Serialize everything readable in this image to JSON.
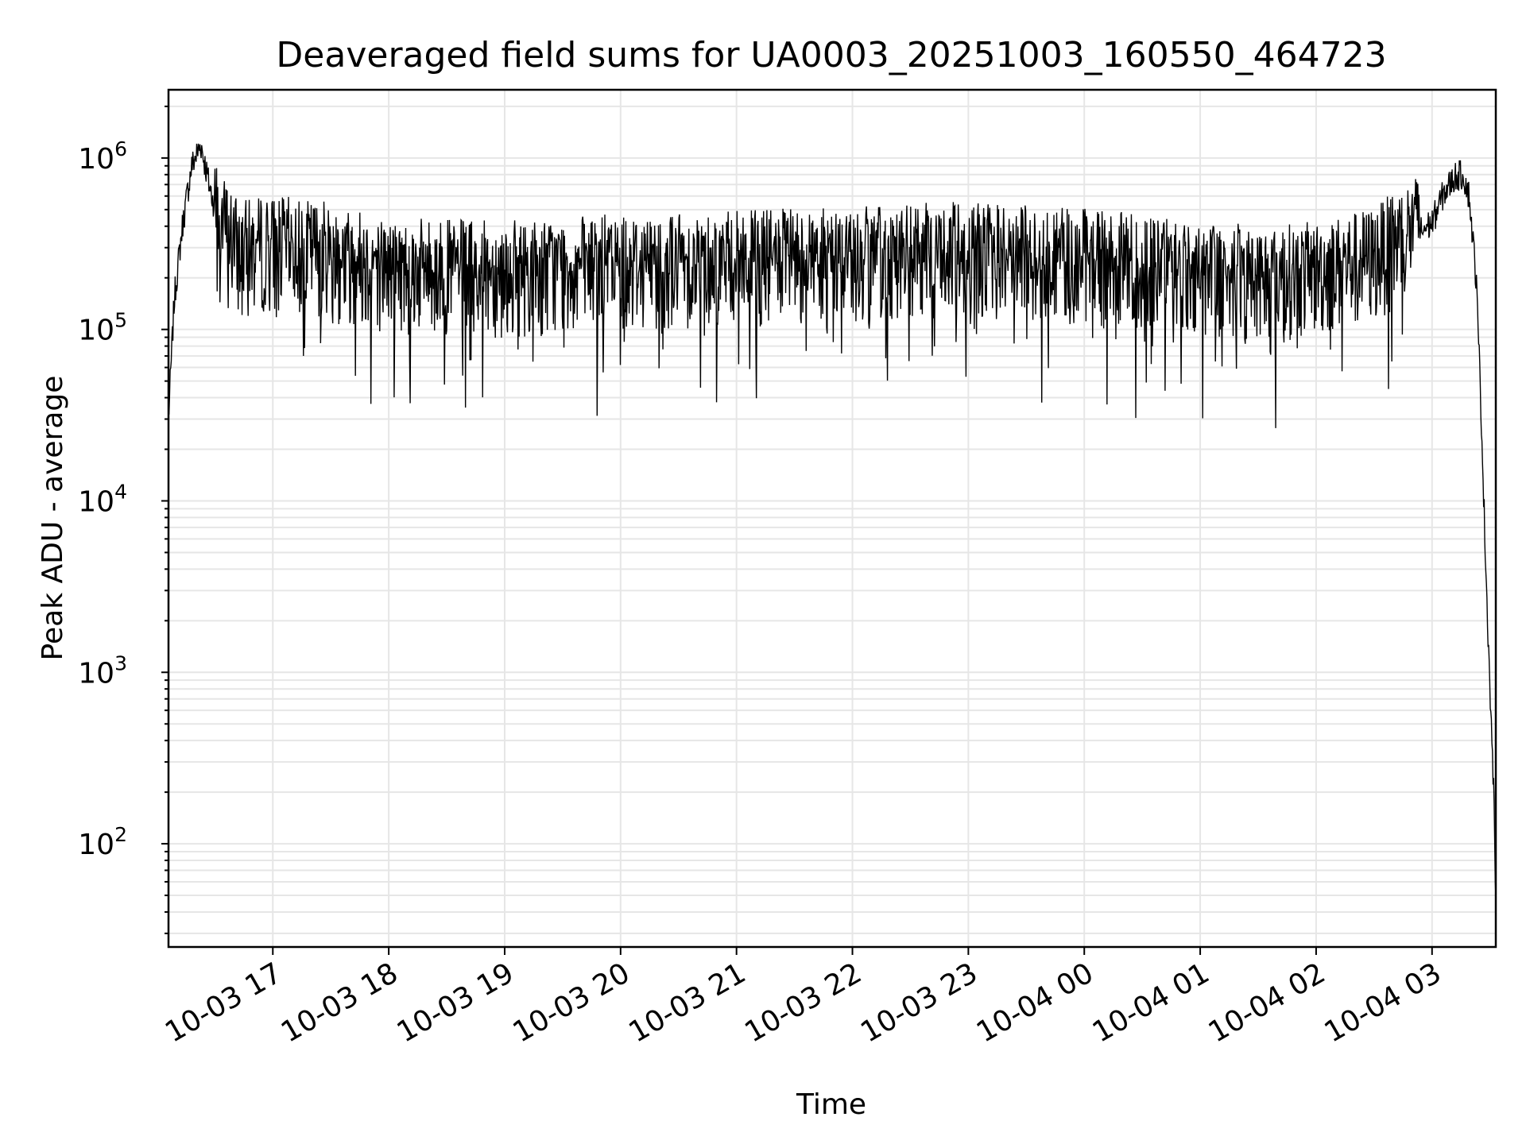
{
  "chart_data": {
    "type": "line",
    "title": "Deaveraged field sums for UA0003_20251003_160550_464723",
    "xlabel": "Time",
    "ylabel": "Peak ADU - average",
    "yscale": "log",
    "ylim": [
      25,
      2500000
    ],
    "xlim_hours": [
      16.1,
      27.55
    ],
    "grid": true,
    "grid_minor": true,
    "y_ticks": [
      {
        "value": 100,
        "base": "10",
        "exp": "2"
      },
      {
        "value": 1000,
        "base": "10",
        "exp": "3"
      },
      {
        "value": 10000,
        "base": "10",
        "exp": "4"
      },
      {
        "value": 100000,
        "base": "10",
        "exp": "5"
      },
      {
        "value": 1000000,
        "base": "10",
        "exp": "6"
      }
    ],
    "x_ticks": [
      {
        "hours": 17,
        "label": "10-03 17"
      },
      {
        "hours": 18,
        "label": "10-03 18"
      },
      {
        "hours": 19,
        "label": "10-03 19"
      },
      {
        "hours": 20,
        "label": "10-03 20"
      },
      {
        "hours": 21,
        "label": "10-03 21"
      },
      {
        "hours": 22,
        "label": "10-03 22"
      },
      {
        "hours": 23,
        "label": "10-03 23"
      },
      {
        "hours": 24,
        "label": "10-04 00"
      },
      {
        "hours": 25,
        "label": "10-04 01"
      },
      {
        "hours": 26,
        "label": "10-04 02"
      },
      {
        "hours": 27,
        "label": "10-04 03"
      }
    ],
    "series": [
      {
        "name": "Peak ADU - average",
        "color": "#000000",
        "noise": {
          "samples": 2400,
          "seed": 7,
          "upper_spread": 1.1,
          "lower_spread": 1.9,
          "drop_probability": 0.06,
          "drop_extra": 0.6
        },
        "baseline": [
          {
            "t": 16.1,
            "v": 30000
          },
          {
            "t": 16.15,
            "v": 150000
          },
          {
            "t": 16.22,
            "v": 400000
          },
          {
            "t": 16.3,
            "v": 900000
          },
          {
            "t": 16.38,
            "v": 1200000
          },
          {
            "t": 16.45,
            "v": 700000
          },
          {
            "t": 16.55,
            "v": 380000
          },
          {
            "t": 16.7,
            "v": 250000
          },
          {
            "t": 17.0,
            "v": 270000
          },
          {
            "t": 17.5,
            "v": 250000
          },
          {
            "t": 18.0,
            "v": 200000
          },
          {
            "t": 19.0,
            "v": 190000
          },
          {
            "t": 20.0,
            "v": 210000
          },
          {
            "t": 21.0,
            "v": 220000
          },
          {
            "t": 22.0,
            "v": 230000
          },
          {
            "t": 23.0,
            "v": 250000
          },
          {
            "t": 24.0,
            "v": 230000
          },
          {
            "t": 25.0,
            "v": 190000
          },
          {
            "t": 25.5,
            "v": 180000
          },
          {
            "t": 26.0,
            "v": 190000
          },
          {
            "t": 26.5,
            "v": 230000
          },
          {
            "t": 26.8,
            "v": 330000
          },
          {
            "t": 27.0,
            "v": 420000
          },
          {
            "t": 27.1,
            "v": 620000
          },
          {
            "t": 27.2,
            "v": 780000
          },
          {
            "t": 27.27,
            "v": 800000
          },
          {
            "t": 27.32,
            "v": 600000
          },
          {
            "t": 27.38,
            "v": 200000
          },
          {
            "t": 27.42,
            "v": 40000
          },
          {
            "t": 27.46,
            "v": 5000
          },
          {
            "t": 27.5,
            "v": 800
          },
          {
            "t": 27.53,
            "v": 220
          },
          {
            "t": 27.55,
            "v": 50
          }
        ],
        "flat_segments": [
          [
            16.1,
            16.5
          ],
          [
            26.9,
            27.55
          ]
        ]
      }
    ]
  }
}
